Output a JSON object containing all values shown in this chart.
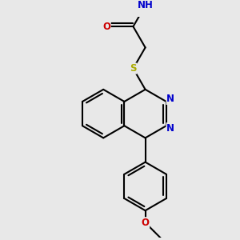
{
  "bg_color": "#e8e8e8",
  "line_color": "#000000",
  "bond_width": 1.5,
  "dbo": 0.05,
  "atom_colors": {
    "N": "#0000cc",
    "O": "#cc0000",
    "S": "#aaaa00",
    "C": "#000000"
  },
  "font_size": 8.5
}
